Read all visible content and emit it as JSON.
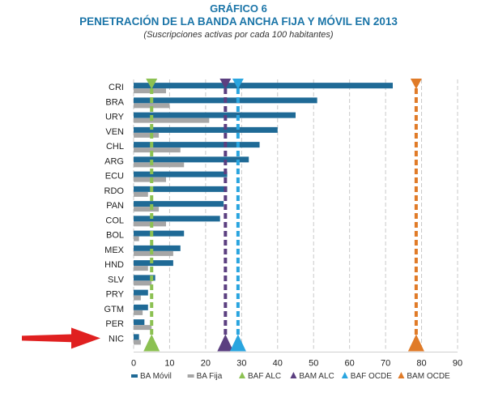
{
  "chart_data": {
    "type": "bar",
    "orientation": "horizontal",
    "title": "GRÁFICO 6",
    "subtitle": "PENETRACIÓN DE LA BANDA ANCHA FIJA Y MÓVIL EN 2013",
    "note": "(Suscripciones activas por cada 100 habitantes)",
    "categories": [
      "CRI",
      "BRA",
      "URY",
      "VEN",
      "CHL",
      "ARG",
      "ECU",
      "RDO",
      "PAN",
      "COL",
      "BOL",
      "MEX",
      "HND",
      "SLV",
      "PRY",
      "GTM",
      "PER",
      "NIC"
    ],
    "series": [
      {
        "name": "BA Móvil",
        "color": "#1f6a96",
        "values": [
          72,
          51,
          45,
          40,
          35,
          32,
          26,
          26,
          25,
          24,
          14,
          13,
          11,
          6,
          4,
          4,
          3,
          1.5
        ]
      },
      {
        "name": "BA Fija",
        "color": "#a6a6a6",
        "values": [
          9,
          10,
          21,
          7,
          13,
          14,
          9,
          4,
          7,
          9,
          1.5,
          11,
          4,
          5,
          2,
          2.5,
          5,
          2
        ]
      }
    ],
    "reference_lines": [
      {
        "name": "BAF ALC",
        "value": 5,
        "color": "#8cc152"
      },
      {
        "name": "BAM ALC",
        "value": 25.5,
        "color": "#5b3f80"
      },
      {
        "name": "BAF OCDE",
        "value": 29,
        "color": "#2aa5df"
      },
      {
        "name": "BAM OCDE",
        "value": 78.5,
        "color": "#e07b28"
      }
    ],
    "xlim": [
      0,
      90
    ],
    "xticks": [
      0,
      10,
      20,
      30,
      40,
      50,
      60,
      70,
      80,
      90
    ],
    "grid": "vertical dashed",
    "legend_position": "bottom",
    "highlight": {
      "category": "NIC",
      "marker": "red-arrow",
      "color": "#e02020"
    }
  }
}
